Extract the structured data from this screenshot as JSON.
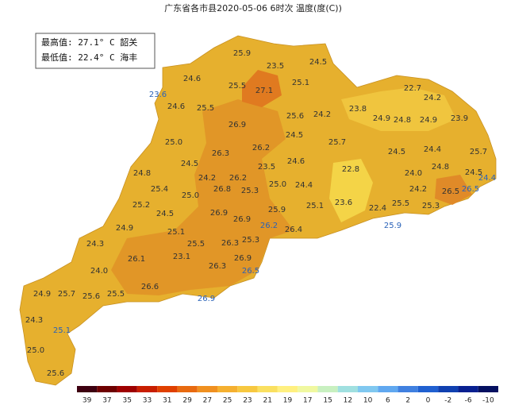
{
  "title": "广东省各市县2020-05-06 6时次 温度(度(C))",
  "info": {
    "max": "最高值: 27.1° C 韶关",
    "min": "最低值: 22.4° C 海丰"
  },
  "labels": [
    "25.9",
    "23.5",
    "24.5",
    "24.6",
    "25.5",
    "27.1",
    "25.1",
    "22.7",
    "23.6",
    "24.2",
    "24.6",
    "25.5",
    "23.8",
    "24.2",
    "25.6",
    "24.9",
    "24.8",
    "24.9",
    "23.9",
    "26.9",
    "24.5",
    "25.0",
    "25.7",
    "26.3",
    "26.2",
    "24.5",
    "24.4",
    "25.7",
    "24.5",
    "24.6",
    "23.5",
    "22.8",
    "24.8",
    "24.0",
    "24.5",
    "24.4",
    "24.8",
    "24.2",
    "26.2",
    "25.0",
    "24.4",
    "25.4",
    "25.0",
    "26.8",
    "25.3",
    "24.2",
    "26.5",
    "26.5",
    "25.2",
    "25.5",
    "25.3",
    "24.5",
    "26.9",
    "25.9",
    "25.1",
    "23.6",
    "22.4",
    "26.9",
    "26.2",
    "26.4",
    "25.9",
    "24.9",
    "25.1",
    "25.3",
    "24.3",
    "25.5",
    "26.3",
    "23.1",
    "26.1",
    "26.9",
    "24.0",
    "26.3",
    "26.5",
    "26.6",
    "25.7",
    "25.6",
    "25.5",
    "24.9",
    "26.9",
    "24.3",
    "25.1",
    "25.0",
    "25.6"
  ],
  "colorbar": {
    "ticks": [
      39,
      37,
      35,
      33,
      31,
      29,
      27,
      25,
      23,
      21,
      19,
      17,
      15,
      12,
      10,
      6,
      2,
      0,
      -2,
      -6,
      -10
    ],
    "colors": [
      "#3d0010",
      "#6e0000",
      "#9e0000",
      "#c81e00",
      "#e04000",
      "#e86a10",
      "#f09020",
      "#f5b030",
      "#f7c840",
      "#fae060",
      "#fff080",
      "#f0f8a0",
      "#c8f0c0",
      "#a0e0e0",
      "#80c8f0",
      "#60a8f0",
      "#4080e0",
      "#2060d0",
      "#1040b0",
      "#082090",
      "#041060"
    ]
  }
}
